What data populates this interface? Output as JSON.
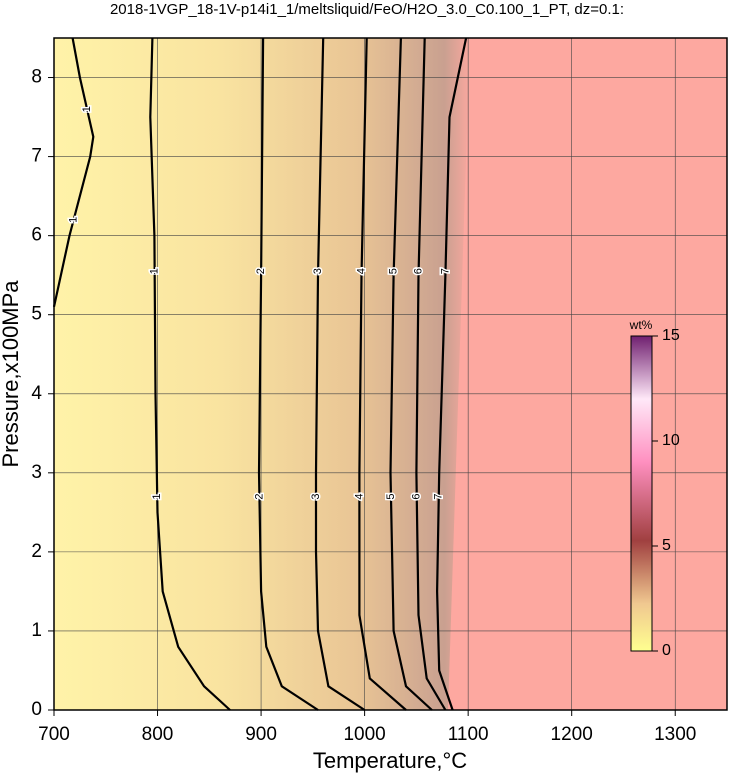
{
  "chart_data": {
    "type": "contour",
    "title": "2018-1VGP_18-1V-p14i1_1/meltsliquid/FeO/H2O_3.0_C0.100_1_PT, dz=0.1:",
    "x_label": "Temperature,°C",
    "y_label": "Pressure,x100MPa",
    "xlim": [
      700,
      1350
    ],
    "ylim": [
      0,
      8.5
    ],
    "xticks": [
      700,
      800,
      900,
      1000,
      1100,
      1200,
      1300
    ],
    "yticks": [
      0,
      1,
      2,
      3,
      4,
      5,
      6,
      7,
      8
    ],
    "grid": true,
    "contours": [
      {
        "level": 1,
        "x": [
          700,
          715,
          735,
          738,
          725,
          718
        ],
        "y": [
          5.1,
          6.0,
          7.0,
          7.25,
          8.0,
          8.5
        ]
      },
      {
        "level": 1,
        "x": [
          870,
          845,
          820,
          805,
          800,
          798,
          797,
          793,
          795
        ],
        "y": [
          0,
          0.3,
          0.8,
          1.5,
          2.5,
          4,
          6,
          7.5,
          8.5
        ]
      },
      {
        "level": 2,
        "x": [
          955,
          920,
          905,
          900,
          898,
          900,
          902
        ],
        "y": [
          0,
          0.3,
          0.8,
          1.5,
          3,
          5.5,
          8.5
        ]
      },
      {
        "level": 3,
        "x": [
          1000,
          965,
          955,
          953,
          953,
          955,
          960
        ],
        "y": [
          0,
          0.3,
          1,
          2,
          3,
          5.5,
          8.5
        ]
      },
      {
        "level": 4,
        "x": [
          1040,
          1005,
          995,
          995,
          997,
          1002
        ],
        "y": [
          0,
          0.4,
          1.2,
          3,
          5.5,
          8.5
        ]
      },
      {
        "level": 5,
        "x": [
          1065,
          1040,
          1028,
          1025,
          1028,
          1035
        ],
        "y": [
          0,
          0.3,
          1,
          3,
          5.5,
          8.5
        ]
      },
      {
        "level": 6,
        "x": [
          1078,
          1060,
          1052,
          1050,
          1052,
          1058
        ],
        "y": [
          0,
          0.4,
          1.2,
          3,
          5.5,
          8.5
        ]
      },
      {
        "level": 7,
        "x": [
          1085,
          1072,
          1070,
          1072,
          1078,
          1082,
          1098
        ],
        "y": [
          0,
          0.5,
          1.5,
          3,
          5.5,
          7.5,
          8.5
        ]
      }
    ],
    "colorbar": {
      "label": "wt%",
      "lim": [
        0,
        15
      ],
      "ticks": [
        0,
        5,
        10,
        15
      ]
    }
  }
}
